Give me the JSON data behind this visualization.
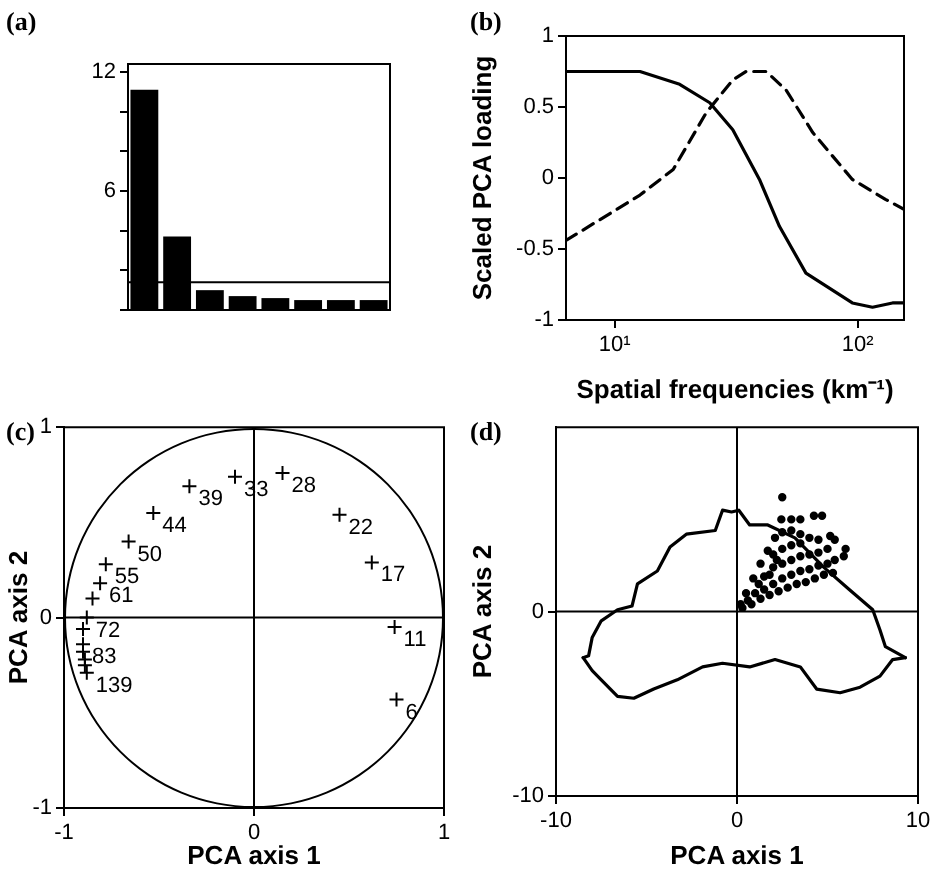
{
  "chart_data": [
    {
      "type": "bar",
      "title": "(a)",
      "categories": [
        null,
        null,
        null,
        null,
        null,
        null,
        null,
        null
      ],
      "values": [
        11.1,
        3.7,
        1.0,
        0.7,
        0.6,
        0.5,
        0.5,
        0.5
      ],
      "color": "#000000",
      "ylim": [
        0,
        12.4
      ],
      "yticks": [
        {
          "value": 0,
          "label": null
        },
        {
          "value": 2,
          "label": null
        },
        {
          "value": 4,
          "label": null
        },
        6,
        {
          "value": 8,
          "label": null
        },
        {
          "value": 10,
          "label": null
        },
        12
      ],
      "ref_lines": [
        {
          "axis": "y",
          "value": 1.4,
          "color": "#000000"
        }
      ]
    },
    {
      "type": "line",
      "title": "(b)",
      "xlabel": "Spatial frequencies (km⁻¹)",
      "ylabel": "Scaled PCA loading",
      "log": "x",
      "xlim": [
        6.3,
        155
      ],
      "xticks": [
        {
          "value": 10,
          "label": "10¹"
        },
        {
          "value": 100,
          "label": "10²"
        }
      ],
      "ylim": [
        -1,
        1
      ],
      "yticks": [
        -1,
        -0.5,
        0,
        0.5,
        1
      ],
      "series": [
        {
          "color": "#000000",
          "line_style": "solid",
          "x": [
            6.3,
            12.7,
            18.5,
            24.6,
            30.6,
            39.4,
            47.6,
            61.2,
            73.9,
            95,
            115,
            139,
            155
          ],
          "values": [
            0.75,
            0.75,
            0.66,
            0.53,
            0.34,
            -0.01,
            -0.34,
            -0.67,
            -0.76,
            -0.88,
            -0.91,
            -0.88,
            -0.88
          ]
        },
        {
          "color": "#000000",
          "line_style": "dashed",
          "x": [
            6.3,
            12.7,
            17.4,
            23.8,
            30.6,
            34.7,
            42,
            50.7,
            65.3,
            95,
            130,
            155
          ],
          "values": [
            -0.44,
            -0.12,
            0.06,
            0.46,
            0.69,
            0.75,
            0.75,
            0.62,
            0.32,
            -0.01,
            -0.15,
            -0.22
          ]
        }
      ]
    },
    {
      "type": "scatter",
      "title": "(c)",
      "xlabel": "PCA axis 1",
      "ylabel": "PCA axis 2",
      "xlim": [
        -1,
        1
      ],
      "ylim": [
        -1,
        1
      ],
      "xticks": [
        -1,
        0,
        1
      ],
      "yticks": [
        -1,
        0,
        1
      ],
      "series": [
        {
          "type": "scatter",
          "color": "#000000",
          "marker": "cross",
          "x": [
            -0.34,
            -0.1,
            0.15,
            0.45,
            0.62,
            0.74,
            0.75,
            -0.53,
            -0.66,
            -0.78,
            -0.81,
            -0.85,
            -0.88,
            -0.9,
            -0.9,
            -0.9,
            -0.89,
            -0.89,
            -0.88
          ],
          "values": [
            0.69,
            0.74,
            0.76,
            0.54,
            0.29,
            -0.05,
            -0.43,
            0.55,
            0.4,
            0.28,
            0.18,
            0.1,
            0,
            -0.06,
            -0.14,
            -0.18,
            -0.22,
            -0.25,
            -0.29
          ]
        }
      ],
      "annotations": [
        {
          "text": "33",
          "x": -0.1,
          "y": 0.74
        },
        {
          "text": "39",
          "x": -0.34,
          "y": 0.69
        },
        {
          "text": "28",
          "x": 0.15,
          "y": 0.76
        },
        {
          "text": "22",
          "x": 0.45,
          "y": 0.54
        },
        {
          "text": "17",
          "x": 0.62,
          "y": 0.29
        },
        {
          "text": "11",
          "x": 0.74,
          "y": -0.05
        },
        {
          "text": "6",
          "x": 0.75,
          "y": -0.43
        },
        {
          "text": "44",
          "x": -0.53,
          "y": 0.55
        },
        {
          "text": "50",
          "x": -0.66,
          "y": 0.4
        },
        {
          "text": "55",
          "x": -0.78,
          "y": 0.28
        },
        {
          "text": "61",
          "x": -0.81,
          "y": 0.18
        },
        {
          "text": "72",
          "x": -0.88,
          "y": 0
        },
        {
          "text": "83",
          "x": -0.9,
          "y": -0.14
        },
        {
          "text": "139",
          "x": -0.88,
          "y": -0.29
        }
      ],
      "ref_lines": [
        {
          "axis": "x",
          "value": 0,
          "color": "#000000"
        },
        {
          "axis": "y",
          "value": 0,
          "color": "#000000"
        }
      ]
    },
    {
      "type": "scatter",
      "title": "(d)",
      "xlabel": "PCA axis 1",
      "ylabel": "PCA axis 2",
      "xlim": [
        -10,
        10
      ],
      "ylim": [
        -10,
        10
      ],
      "xticks": [
        -10,
        0,
        10
      ],
      "yticks": [
        -10,
        0
      ],
      "series": [
        {
          "type": "line",
          "color": "#000000",
          "marker": "none",
          "x": [
            -8.5,
            -8.2,
            -8.0,
            -7.5,
            -6.6,
            -5.8,
            -5.5,
            -4.4,
            -3.7,
            -2.8,
            -1.2,
            -0.8,
            -0.3,
            0.1,
            0.7,
            1.7,
            3.2,
            4.8,
            6.2,
            7.5,
            7.9,
            8.2,
            9.3
          ],
          "values": [
            -2.5,
            -2.4,
            -1.4,
            -0.5,
            0.1,
            0.3,
            1.5,
            2.2,
            3.5,
            4.2,
            4.4,
            5.5,
            5.4,
            5.5,
            4.7,
            4.7,
            4.0,
            2.4,
            1.2,
            0.1,
            -1.0,
            -1.9,
            -2.5
          ]
        },
        {
          "type": "line",
          "color": "#000000",
          "marker": "none",
          "x": [
            -8.5,
            -8.0,
            -7.5,
            -6.6,
            -5.7,
            -4.6,
            -3.3,
            -1.9,
            -0.8,
            0.7,
            2.1,
            3.5,
            4.4,
            5.7,
            6.8,
            7.9,
            8.6,
            9.3
          ],
          "values": [
            -2.5,
            -3.2,
            -3.7,
            -4.6,
            -4.7,
            -4.2,
            -3.7,
            -3.0,
            -2.8,
            -3.0,
            -2.6,
            -3.0,
            -4.2,
            -4.4,
            -4.1,
            -3.5,
            -2.6,
            -2.5
          ]
        },
        {
          "type": "scatter",
          "color": "#000000",
          "marker": "circle",
          "x": [
            0.3,
            0.8,
            1.3,
            1.8,
            2.3,
            2.8,
            3.3,
            3.8,
            4.3,
            4.8,
            5.3,
            0.2,
            0.5,
            0.9,
            1.3,
            1.7,
            2.1,
            2.5,
            3.0,
            3.5,
            4.0,
            4.5,
            5.0,
            5.4,
            1.0,
            1.5,
            1.5,
            2.0,
            2.0,
            2.0,
            2.5,
            2.5,
            2.5,
            3.0,
            3.0,
            3.0,
            3.5,
            3.5,
            3.5,
            4.0,
            4.0,
            4.5,
            4.5,
            5.0,
            0.6,
            1.2,
            1.8,
            2.2,
            2.5,
            2.45,
            3.0,
            3.5,
            4.25,
            4.7,
            5.15,
            5.4,
            6.0,
            5.9
          ],
          "values": [
            0.2,
            0.4,
            0.7,
            0.9,
            1.1,
            1.3,
            1.5,
            1.6,
            1.8,
            2.0,
            2.1,
            0.4,
            1.0,
            1.8,
            2.6,
            3.3,
            4.0,
            4.3,
            4.4,
            4.2,
            4.0,
            3.9,
            3.4,
            2.8,
            1.0,
            1.2,
            1.9,
            1.5,
            2.4,
            3.1,
            1.8,
            2.6,
            3.4,
            2.0,
            2.8,
            3.6,
            2.2,
            3.0,
            3.7,
            2.3,
            3.1,
            2.5,
            3.2,
            2.6,
            0.6,
            1.5,
            2.0,
            2.8,
            6.2,
            5.0,
            5.0,
            5.0,
            5.2,
            5.2,
            4.1,
            3.9,
            3.4,
            3.0
          ]
        }
      ],
      "ref_lines": [
        {
          "axis": "x",
          "value": 0,
          "color": "#000000"
        },
        {
          "axis": "y",
          "value": 0,
          "color": "#000000"
        }
      ]
    }
  ]
}
